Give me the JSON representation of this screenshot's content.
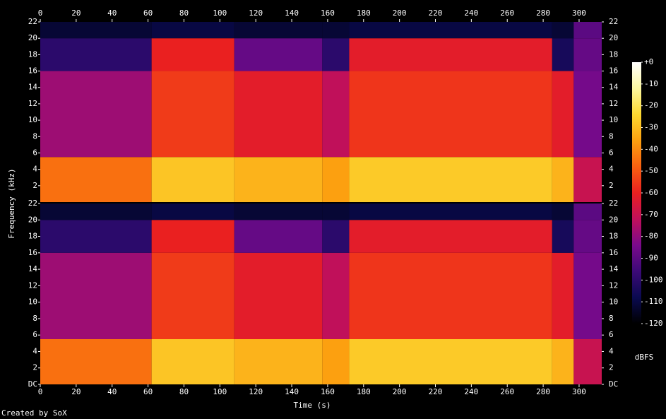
{
  "chart_data": {
    "type": "spectrogram",
    "x_label": "Time (s)",
    "y_label": "Frequency (kHz)",
    "colorbar_label": "dBFS",
    "footer": "Created by SoX",
    "xlim": [
      0,
      312.6
    ],
    "xticks": [
      0,
      20,
      40,
      60,
      80,
      100,
      120,
      140,
      160,
      180,
      200,
      220,
      240,
      260,
      280,
      300
    ],
    "colormap": [
      "#000000",
      "#0a0a50",
      "#3c0a78",
      "#7a0a8c",
      "#c0105a",
      "#ea2020",
      "#f86010",
      "#fca010",
      "#fcd830",
      "#fcf8a0",
      "#ffffff"
    ],
    "zlim": [
      -120,
      0
    ],
    "zticks": [
      {
        "value": 0,
        "label": "+0"
      },
      -10,
      -20,
      -30,
      -40,
      -50,
      -60,
      -70,
      -80,
      -90,
      -100,
      -110,
      -120
    ],
    "bands": [
      0,
      5.5,
      16,
      20,
      22
    ],
    "segments": [
      {
        "start": 0,
        "end": 62,
        "levels": [
          -45,
          -78,
          -100,
          -112
        ]
      },
      {
        "start": 62,
        "end": 108,
        "levels": [
          -28,
          -55,
          -60,
          -110
        ]
      },
      {
        "start": 108,
        "end": 157,
        "levels": [
          -32,
          -62,
          -88,
          -112
        ]
      },
      {
        "start": 157,
        "end": 172,
        "levels": [
          -36,
          -72,
          -100,
          -112
        ]
      },
      {
        "start": 172,
        "end": 285,
        "levels": [
          -27,
          -56,
          -62,
          -110
        ]
      },
      {
        "start": 285,
        "end": 297,
        "levels": [
          -32,
          -62,
          -105,
          -112
        ]
      },
      {
        "start": 297,
        "end": 312.6,
        "levels": [
          -70,
          -85,
          -88,
          -90
        ]
      }
    ],
    "channels": [
      {
        "ylim": [
          0,
          22
        ],
        "yticks": [
          2,
          4,
          6,
          8,
          10,
          12,
          14,
          16,
          18,
          20,
          22
        ]
      },
      {
        "ylim": [
          0,
          22
        ],
        "yticks": [
          {
            "value": 0,
            "label": "DC"
          },
          2,
          4,
          6,
          8,
          10,
          12,
          14,
          16,
          18,
          20,
          22
        ]
      }
    ]
  }
}
